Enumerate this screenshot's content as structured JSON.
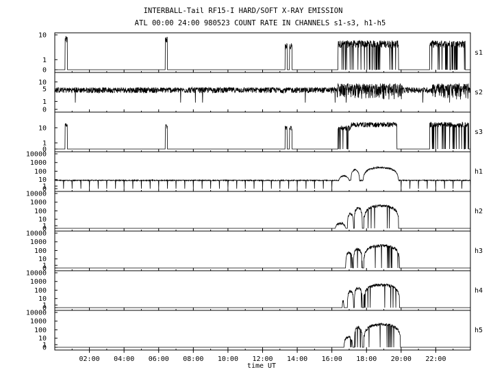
{
  "title": "INTERBALL-Tail RF15-I HARD/SOFT X-RAY EMISSION",
  "subtitle": "ATL 00:00 24:00 980523  COUNT RATE IN CHANNELS s1-s3, h1-h5",
  "chart_data": {
    "type": "line",
    "title": "INTERBALL-Tail RF15-I HARD/SOFT X-RAY EMISSION",
    "subtitle": "ATL 00:00 24:00 980523  COUNT RATE IN CHANNELS s1-s3, h1-h5",
    "xlabel": "time UT",
    "x_range_hours": [
      0,
      24
    ],
    "x_ticks": [
      {
        "h": 2,
        "label": "02:00"
      },
      {
        "h": 4,
        "label": "04:00"
      },
      {
        "h": 6,
        "label": "06:00"
      },
      {
        "h": 8,
        "label": "08:00"
      },
      {
        "h": 10,
        "label": "10:00"
      },
      {
        "h": 12,
        "label": "12:00"
      },
      {
        "h": 14,
        "label": "14:00"
      },
      {
        "h": 16,
        "label": "16:00"
      },
      {
        "h": 18,
        "label": "18:00"
      },
      {
        "h": 20,
        "label": "20:00"
      },
      {
        "h": 22,
        "label": "22:00"
      }
    ],
    "grid": false,
    "y_scale": "log (0 at bottom)",
    "series": [
      {
        "name": "s1",
        "yticks": [
          "0",
          "1",
          "10"
        ],
        "ymax": 10,
        "baseline": 0,
        "bursts": [
          {
            "start": 0.6,
            "end": 0.72,
            "level": 7
          },
          {
            "start": 6.38,
            "end": 6.5,
            "level": 7
          },
          {
            "start": 13.3,
            "end": 13.42,
            "level": 4
          },
          {
            "start": 13.55,
            "end": 13.7,
            "level": 4
          },
          {
            "start": 16.35,
            "end": 19.85,
            "level": 5,
            "dropouts": true
          },
          {
            "start": 21.65,
            "end": 23.7,
            "level": 5,
            "dropouts": true
          }
        ]
      },
      {
        "name": "s2",
        "yticks": [
          "0",
          "1",
          "5",
          "10"
        ],
        "ymax": 20,
        "baseline": 4.5,
        "noise": "continuous",
        "enhanced_noise": [
          [
            16.3,
            20.1
          ],
          [
            21.8,
            23.9
          ]
        ]
      },
      {
        "name": "s3",
        "yticks": [
          "0",
          "1",
          "10"
        ],
        "ymax": 50,
        "baseline": 0,
        "bursts": [
          {
            "start": 0.6,
            "end": 0.72,
            "level": 15
          },
          {
            "start": 6.38,
            "end": 6.5,
            "level": 12
          },
          {
            "start": 13.3,
            "end": 13.42,
            "level": 10
          },
          {
            "start": 13.55,
            "end": 13.7,
            "level": 10
          },
          {
            "start": 16.35,
            "end": 17.1,
            "level": 10,
            "dropouts": true
          },
          {
            "start": 17.1,
            "end": 19.75,
            "level": 15
          },
          {
            "start": 21.65,
            "end": 23.9,
            "level": 15,
            "dropouts": true
          }
        ]
      },
      {
        "name": "h1",
        "yticks": [
          "0",
          "1",
          "10",
          "100",
          "1000",
          "10000"
        ],
        "ymax": 10000,
        "baseline": 8,
        "periodic_dropout_hours": 0.5,
        "enhancements": [
          {
            "start": 16.4,
            "end": 17.0,
            "peak": 30
          },
          {
            "start": 17.1,
            "end": 17.6,
            "peak": 150
          },
          {
            "start": 17.8,
            "end": 19.85,
            "peak": 280
          }
        ]
      },
      {
        "name": "h2",
        "yticks": [
          "0",
          "1",
          "10",
          "100",
          "1000",
          "10000"
        ],
        "ymax": 10000,
        "baseline": 0,
        "activity_start": 16.2,
        "arcs": [
          {
            "start": 16.2,
            "end": 16.8,
            "peak": 3
          },
          {
            "start": 16.9,
            "end": 17.25,
            "peak": 50
          },
          {
            "start": 17.3,
            "end": 17.75,
            "peak": 250
          },
          {
            "start": 17.85,
            "end": 19.85,
            "peak": 400
          }
        ]
      },
      {
        "name": "h3",
        "yticks": [
          "0",
          "1",
          "10",
          "100",
          "1000",
          "10000"
        ],
        "ymax": 10000,
        "baseline": 0,
        "activity_start": 16.8,
        "arcs": [
          {
            "start": 16.8,
            "end": 17.2,
            "peak": 60
          },
          {
            "start": 17.25,
            "end": 17.75,
            "peak": 150
          },
          {
            "start": 17.85,
            "end": 19.9,
            "peak": 400
          }
        ]
      },
      {
        "name": "h4",
        "yticks": [
          "0",
          "1",
          "10",
          "100",
          "1000",
          "10000"
        ],
        "ymax": 10000,
        "baseline": 0,
        "activity_start": 16.6,
        "arcs": [
          {
            "start": 16.6,
            "end": 16.7,
            "peak": 5
          },
          {
            "start": 16.9,
            "end": 17.25,
            "peak": 80
          },
          {
            "start": 17.3,
            "end": 17.75,
            "peak": 200
          },
          {
            "start": 17.85,
            "end": 19.9,
            "peak": 450
          }
        ]
      },
      {
        "name": "h5",
        "yticks": [
          "0",
          "1",
          "10",
          "100",
          "1000",
          "10000"
        ],
        "ymax": 10000,
        "baseline": 0,
        "activity_start": 16.7,
        "arcs": [
          {
            "start": 16.7,
            "end": 17.2,
            "peak": 15
          },
          {
            "start": 17.3,
            "end": 17.75,
            "peak": 200
          },
          {
            "start": 17.85,
            "end": 19.95,
            "peak": 450
          }
        ]
      }
    ]
  }
}
